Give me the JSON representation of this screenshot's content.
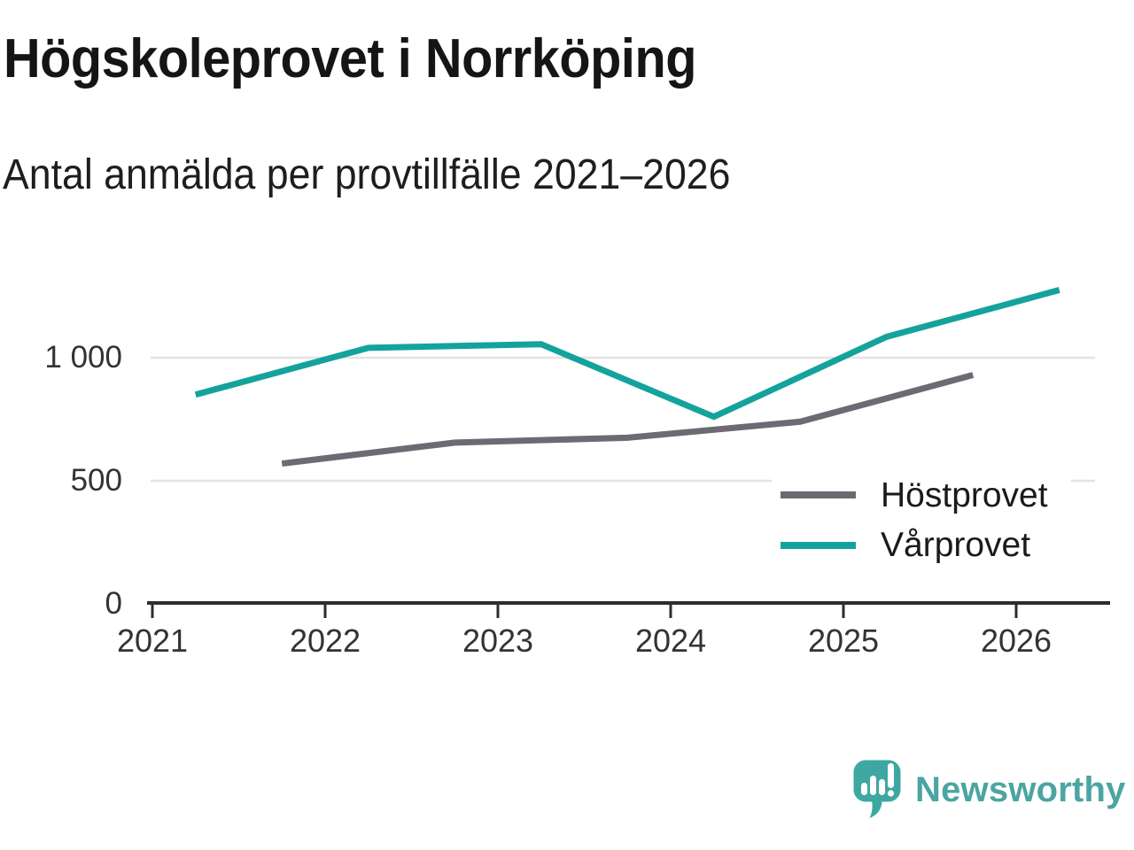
{
  "header": {
    "title": "Högskoleprovet i Norrköping",
    "subtitle": "Antal anmälda per provtillfälle 2021–2026"
  },
  "chart_data": {
    "type": "line",
    "title": "Högskoleprovet i Norrköping",
    "subtitle": "Antal anmälda per provtillfälle 2021–2026",
    "xlabel": "",
    "ylabel": "",
    "x_ticks": [
      2021,
      2022,
      2023,
      2024,
      2025,
      2026
    ],
    "y_ticks": [
      0,
      500,
      1000
    ],
    "y_tick_labels": [
      "0",
      "500",
      "1 000"
    ],
    "xlim": [
      2021,
      2026.55
    ],
    "ylim": [
      0,
      1450
    ],
    "grid": "horizontal",
    "legend_position": "inside-right",
    "series": [
      {
        "name": "Höstprovet",
        "color": "#6d6a73",
        "x": [
          2021.75,
          2022.75,
          2023.75,
          2024.75,
          2025.75
        ],
        "values": [
          570,
          655,
          675,
          740,
          930
        ]
      },
      {
        "name": "Vårprovet",
        "color": "#14a39c",
        "x": [
          2021.25,
          2022.25,
          2023.25,
          2024.25,
          2025.25,
          2026.25
        ],
        "values": [
          850,
          1040,
          1055,
          760,
          1085,
          1275
        ]
      }
    ],
    "axis_color": "#2d2d2d",
    "grid_color": "#e3e3e3"
  },
  "footer": {
    "logo_text": "Newsworthy",
    "logo_text_color": "#4ba5a2",
    "logo_mark_color": "#3fa7a2"
  }
}
